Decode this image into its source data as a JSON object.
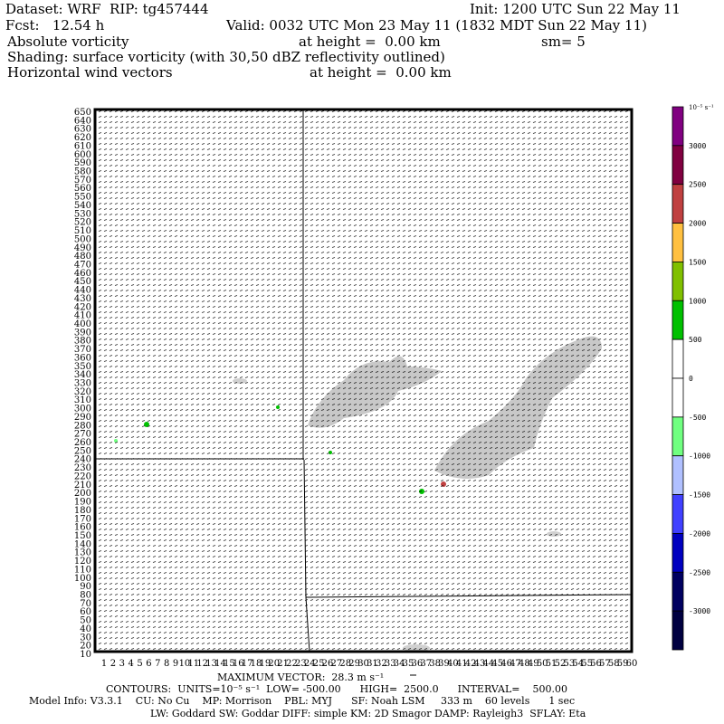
{
  "header": {
    "dataset": "Dataset: WRF  RIP: tg457444",
    "init": "Init: 1200 UTC Sun 22 May 11",
    "fcst": "Fcst:   12.54 h",
    "valid": "Valid: 0032 UTC Mon 23 May 11 (1832 MDT Sun 22 May 11)",
    "field1": "Absolute vorticity",
    "field1_level": "at height =  0.00 km",
    "smooth": "sm= 5",
    "shading": "Shading: surface vorticity (with 30,50 dBZ reflectivity outlined)",
    "field2": "Horizontal wind vectors",
    "field2_level": "at height =  0.00 km"
  },
  "footer": {
    "max_vector": "MAXIMUM VECTOR:  28.3 m s⁻¹",
    "contours": "CONTOURS:  UNITS=10⁻⁵ s⁻¹  LOW= -500.00      HIGH=  2500.0      INTERVAL=    500.00",
    "model": "Model Info: V3.3.1    CU: No Cu    MP: Morrison    PBL: MYJ      SF: Noah LSM     333 m    60 levels      1 sec",
    "model2": "LW: Goddard SW: Goddar DIFF: simple KM: 2D Smagor DAMP: Rayleigh3  SFLAY: Eta"
  },
  "chart_data": {
    "type": "heatmap",
    "title": "Absolute vorticity / surface vorticity shading with wind vectors",
    "ylabel": "",
    "xlabel": "",
    "ylim": [
      10,
      650
    ],
    "yticks": [
      10,
      20,
      30,
      40,
      50,
      60,
      70,
      80,
      90,
      100,
      110,
      120,
      130,
      140,
      150,
      160,
      170,
      180,
      190,
      200,
      210,
      220,
      230,
      240,
      250,
      260,
      270,
      280,
      290,
      300,
      310,
      320,
      330,
      340,
      350,
      360,
      370,
      380,
      390,
      400,
      410,
      420,
      430,
      440,
      450,
      460,
      470,
      480,
      490,
      500,
      510,
      520,
      530,
      540,
      550,
      560,
      570,
      580,
      590,
      600,
      610,
      620,
      630,
      640,
      650
    ],
    "xticks": [
      1,
      2,
      3,
      4,
      5,
      6,
      7,
      8,
      9,
      10,
      11,
      12,
      13,
      14,
      15,
      16,
      17,
      18,
      19,
      20,
      21,
      22,
      23,
      24,
      25,
      26,
      27,
      28,
      29,
      30,
      31,
      32,
      33,
      34,
      35,
      36,
      37,
      38,
      39,
      40,
      41,
      42,
      43,
      44,
      45,
      46,
      47,
      48,
      49,
      50,
      51,
      52,
      53,
      54,
      55,
      56,
      57,
      58,
      59,
      60
    ],
    "colorbar": {
      "units": "10⁻⁵ s⁻¹",
      "labels": [
        "3000",
        "2500",
        "2000",
        "1500",
        "1000",
        "500",
        "0",
        "-500",
        "-1000",
        "-1500",
        "-2000",
        "-2500",
        "-3000"
      ],
      "colors": [
        "#800080",
        "#800040",
        "#c04040",
        "#ffc040",
        "#80c000",
        "#00c000",
        "#ffffff",
        "#ffffff",
        "#70ff80",
        "#b0c0ff",
        "#4040ff",
        "#0000c0",
        "#000060",
        "#000040"
      ]
    }
  }
}
